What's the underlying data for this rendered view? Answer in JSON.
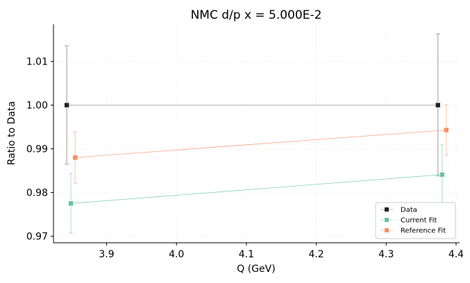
{
  "chart_data": {
    "type": "line",
    "title": "NMC d/p x = 5.000E-2",
    "xlabel": "Q (GeV)",
    "ylabel": "Ratio to Data",
    "xlim": [
      3.824,
      4.405
    ],
    "ylim": [
      0.9685,
      1.0185
    ],
    "xticks": [
      3.9,
      4.0,
      4.1,
      4.2,
      4.3,
      4.4
    ],
    "xtick_labels": [
      "3.9",
      "4.0",
      "4.1",
      "4.2",
      "4.3",
      "4.4"
    ],
    "yticks": [
      0.97,
      0.98,
      0.99,
      1.0,
      1.01
    ],
    "ytick_labels": [
      "0.97",
      "0.98",
      "0.99",
      "1.00",
      "1.01"
    ],
    "grid": true,
    "legend_position": "bottom-right",
    "series": [
      {
        "name": "Data",
        "color": "#222222",
        "line_color": "#bbbbbb",
        "x": [
          3.843,
          4.374
        ],
        "y": [
          1.0,
          1.0
        ],
        "err_low": [
          0.9865,
          0.9838
        ],
        "err_high": [
          1.0136,
          1.0163
        ]
      },
      {
        "name": "Current Fit",
        "color": "#66c2a5",
        "line_color": "#66c2a5",
        "x": [
          3.849,
          4.38
        ],
        "y": [
          0.9775,
          0.9841
        ],
        "err_low": [
          0.9707,
          0.9772
        ],
        "err_high": [
          0.9844,
          0.9909
        ]
      },
      {
        "name": "Reference Fit",
        "color": "#fc8d62",
        "line_color": "#fc8d62",
        "x": [
          3.855,
          4.386
        ],
        "y": [
          0.988,
          0.9943
        ],
        "err_low": [
          0.9821,
          0.9885
        ],
        "err_high": [
          0.9939,
          1.0001
        ]
      }
    ]
  }
}
